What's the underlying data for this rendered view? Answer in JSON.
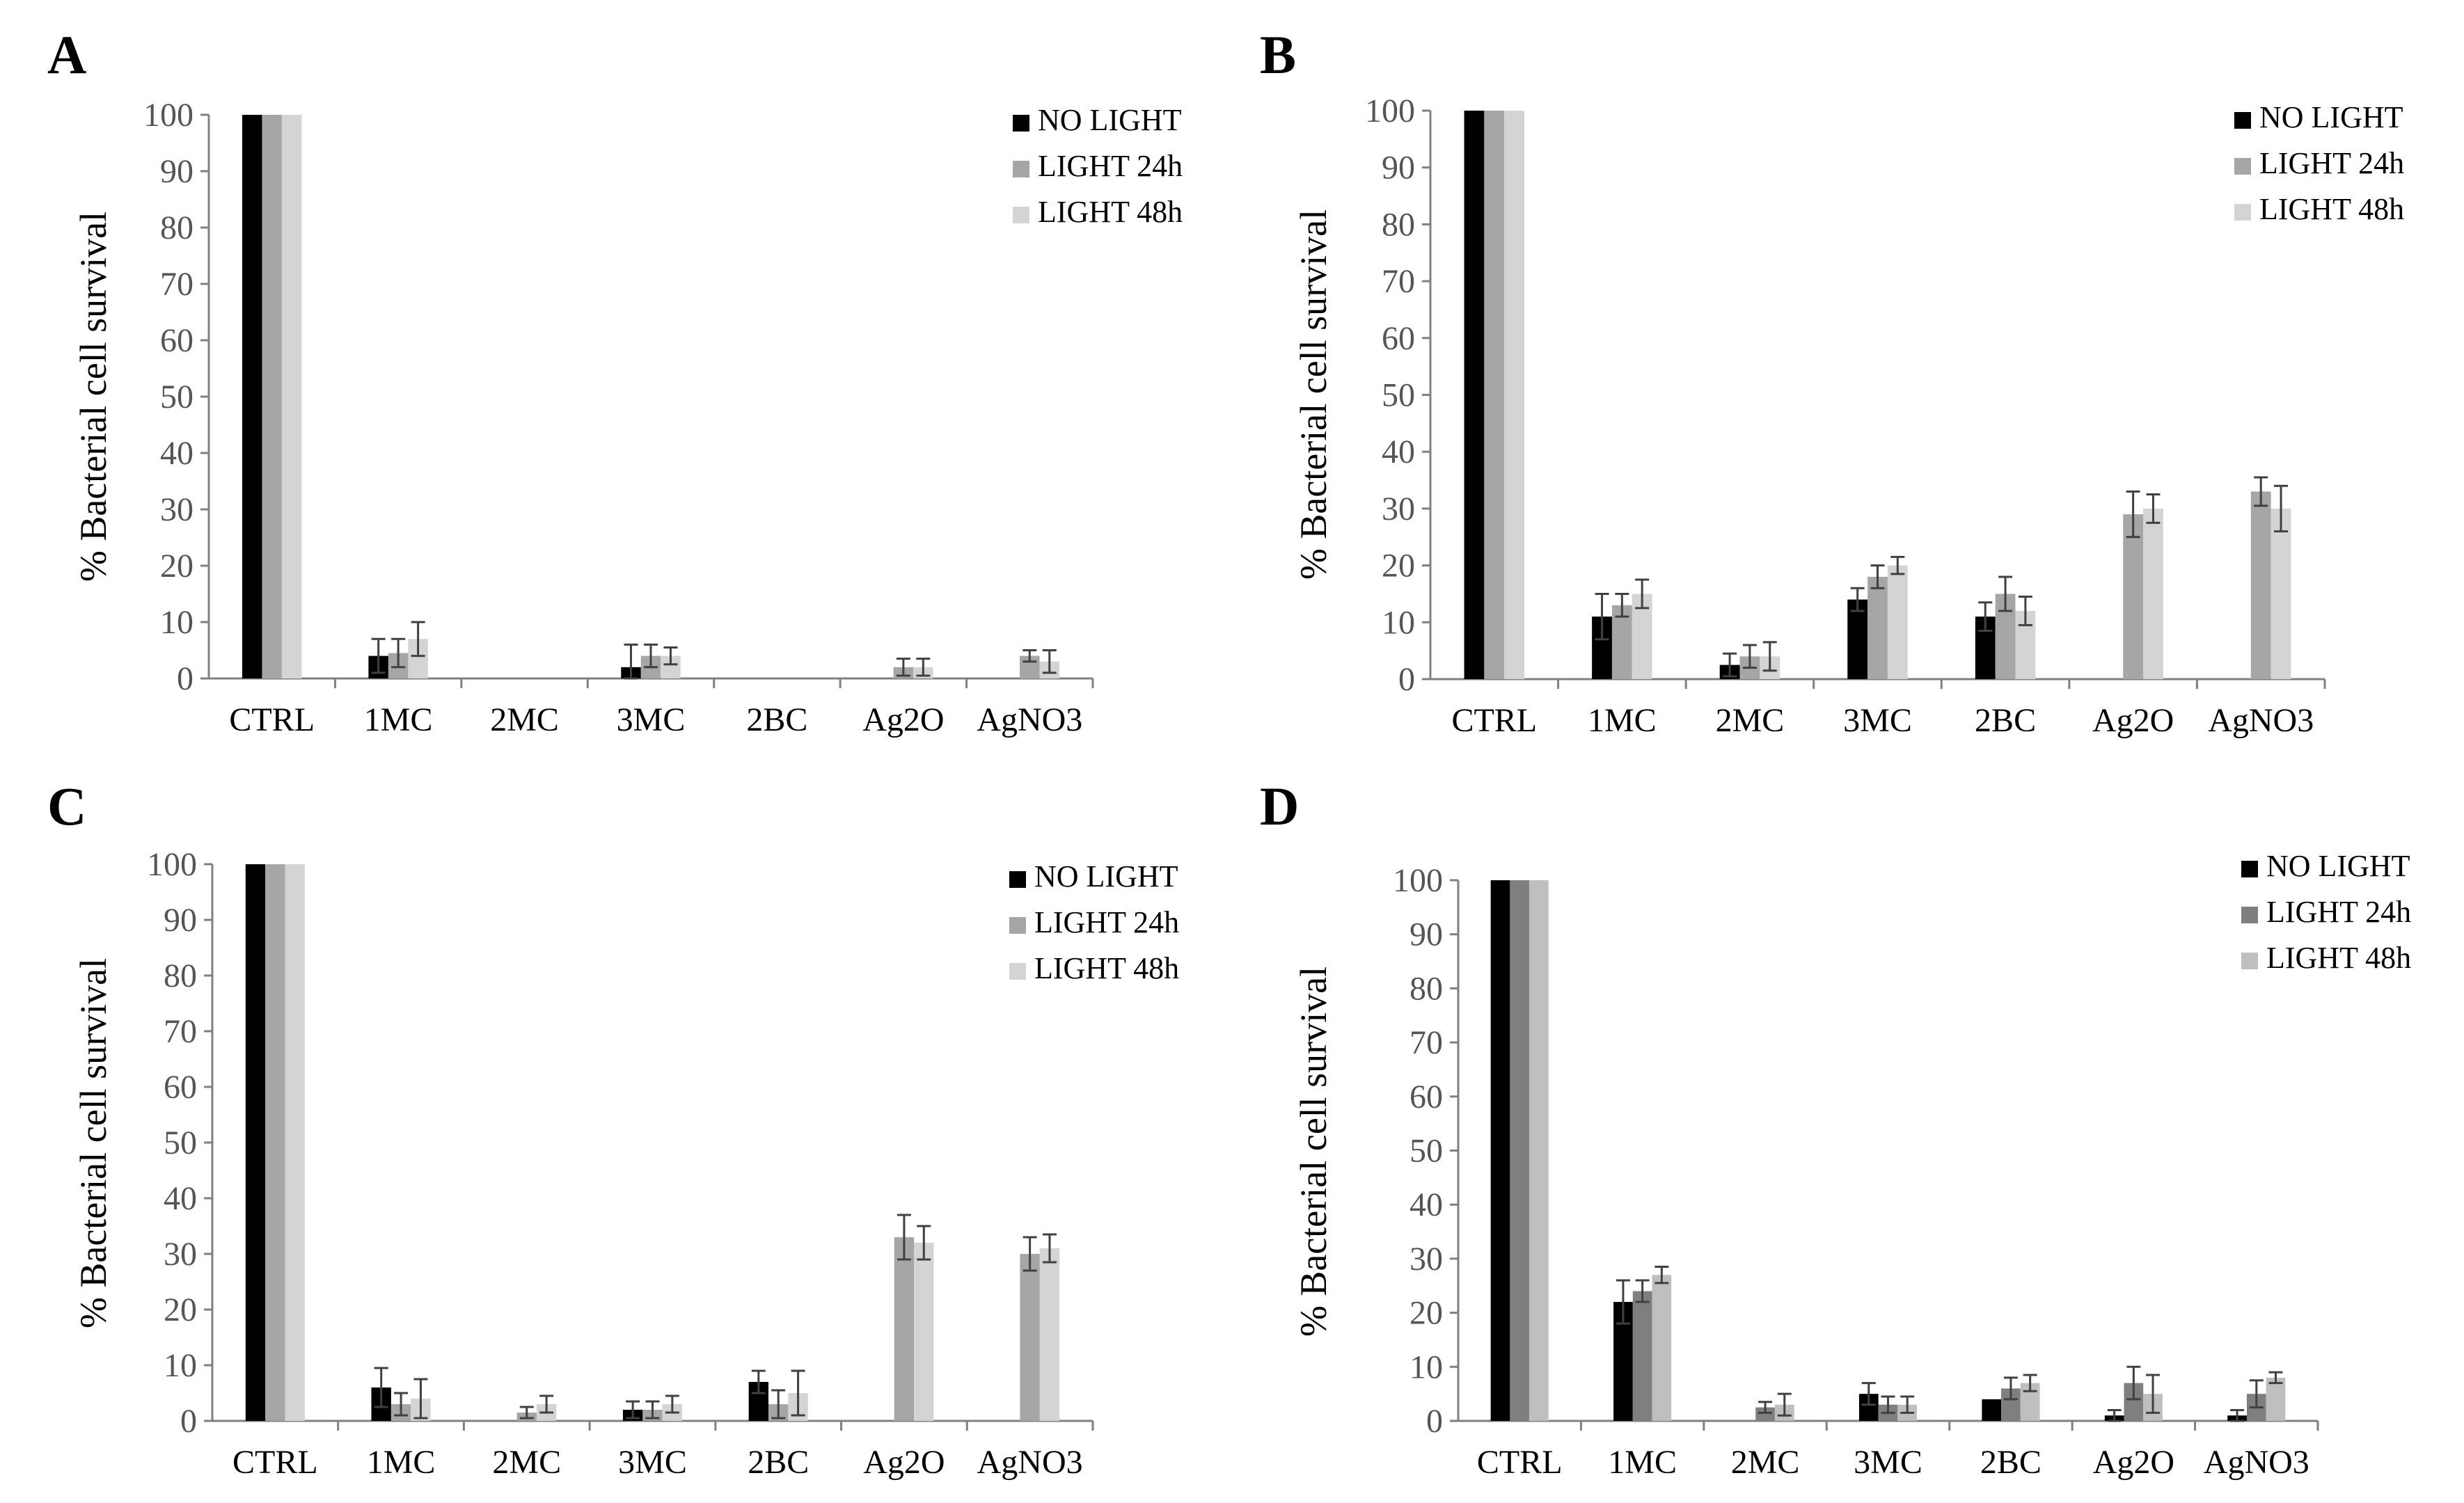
{
  "chart_data": [
    {
      "panel": "A",
      "type": "bar",
      "ylabel": "% Bacterial cell survival",
      "xlabel": "",
      "ylim": [
        0,
        100
      ],
      "yticks": [
        0,
        10,
        20,
        30,
        40,
        50,
        60,
        70,
        80,
        90,
        100
      ],
      "categories": [
        "CTRL",
        "1MC",
        "2MC",
        "3MC",
        "2BC",
        "Ag2O",
        "AgNO3"
      ],
      "legend_position": "top-right",
      "series": [
        {
          "name": "NO LIGHT",
          "color": "#000000",
          "values": [
            100,
            4,
            0,
            2,
            0,
            0,
            0
          ],
          "errors": [
            0,
            3,
            0,
            4,
            0,
            0,
            0
          ]
        },
        {
          "name": "LIGHT 24h",
          "color": "#a6a6a6",
          "values": [
            100,
            4.5,
            0,
            4,
            0,
            2,
            4
          ],
          "errors": [
            0,
            2.5,
            0,
            2,
            0,
            1.5,
            1
          ]
        },
        {
          "name": "LIGHT 48h",
          "color": "#d4d4d4",
          "values": [
            100,
            7,
            0,
            4,
            0,
            2,
            3
          ],
          "errors": [
            0,
            3,
            0,
            1.5,
            0,
            1.5,
            2
          ]
        }
      ]
    },
    {
      "panel": "B",
      "type": "bar",
      "ylabel": "% Bacterial cell survival",
      "xlabel": "",
      "ylim": [
        0,
        100
      ],
      "yticks": [
        0,
        10,
        20,
        30,
        40,
        50,
        60,
        70,
        80,
        90,
        100
      ],
      "categories": [
        "CTRL",
        "1MC",
        "2MC",
        "3MC",
        "2BC",
        "Ag2O",
        "AgNO3"
      ],
      "legend_position": "top-right",
      "series": [
        {
          "name": "NO LIGHT",
          "color": "#000000",
          "values": [
            100,
            11,
            2.5,
            14,
            11,
            0,
            0
          ],
          "errors": [
            0,
            4,
            2,
            2,
            2.5,
            0,
            0
          ]
        },
        {
          "name": "LIGHT 24h",
          "color": "#a6a6a6",
          "values": [
            100,
            13,
            4,
            18,
            15,
            29,
            33
          ],
          "errors": [
            0,
            2,
            2,
            2,
            3,
            4,
            2.5
          ]
        },
        {
          "name": "LIGHT 48h",
          "color": "#d4d4d4",
          "values": [
            100,
            15,
            4,
            20,
            12,
            30,
            30
          ],
          "errors": [
            0,
            2.5,
            2.5,
            1.5,
            2.5,
            2.5,
            4
          ]
        }
      ]
    },
    {
      "panel": "C",
      "type": "bar",
      "ylabel": "% Bacterial cell survival",
      "xlabel": "",
      "ylim": [
        0,
        100
      ],
      "yticks": [
        0,
        10,
        20,
        30,
        40,
        50,
        60,
        70,
        80,
        90,
        100
      ],
      "categories": [
        "CTRL",
        "1MC",
        "2MC",
        "3MC",
        "2BC",
        "Ag2O",
        "AgNO3"
      ],
      "legend_position": "top-right",
      "series": [
        {
          "name": "NO LIGHT",
          "color": "#000000",
          "values": [
            100,
            6,
            0,
            2,
            7,
            0,
            0
          ],
          "errors": [
            0,
            3.5,
            0,
            1.5,
            2,
            0,
            0
          ]
        },
        {
          "name": "LIGHT 24h",
          "color": "#a6a6a6",
          "values": [
            100,
            3,
            1.5,
            2,
            3,
            33,
            30
          ],
          "errors": [
            0,
            2,
            1,
            1.5,
            2.5,
            4,
            3
          ]
        },
        {
          "name": "LIGHT 48h",
          "color": "#d4d4d4",
          "values": [
            100,
            4,
            3,
            3,
            5,
            32,
            31
          ],
          "errors": [
            0,
            3.5,
            1.5,
            1.5,
            4,
            3,
            2.5
          ]
        }
      ]
    },
    {
      "panel": "D",
      "type": "bar",
      "ylabel": "% Bacterial cell survival",
      "xlabel": "",
      "ylim": [
        0,
        100
      ],
      "yticks": [
        0,
        10,
        20,
        30,
        40,
        50,
        60,
        70,
        80,
        90,
        100
      ],
      "categories": [
        "CTRL",
        "1MC",
        "2MC",
        "3MC",
        "2BC",
        "Ag2O",
        "AgNO3"
      ],
      "legend_position": "top-right",
      "series": [
        {
          "name": "NO LIGHT",
          "color": "#000000",
          "values": [
            100,
            22,
            0,
            5,
            4,
            1,
            1
          ],
          "errors": [
            0,
            4,
            0,
            2,
            0,
            1,
            1
          ]
        },
        {
          "name": "LIGHT 24h",
          "color": "#7f7f7f",
          "values": [
            100,
            24,
            2.5,
            3,
            6,
            7,
            5
          ],
          "errors": [
            0,
            2,
            1,
            1.5,
            2,
            3,
            2.5
          ]
        },
        {
          "name": "LIGHT 48h",
          "color": "#bfbfbf",
          "values": [
            100,
            27,
            3,
            3,
            7,
            5,
            8
          ],
          "errors": [
            0,
            1.5,
            2,
            1.5,
            1.5,
            3.5,
            1
          ]
        }
      ]
    }
  ]
}
